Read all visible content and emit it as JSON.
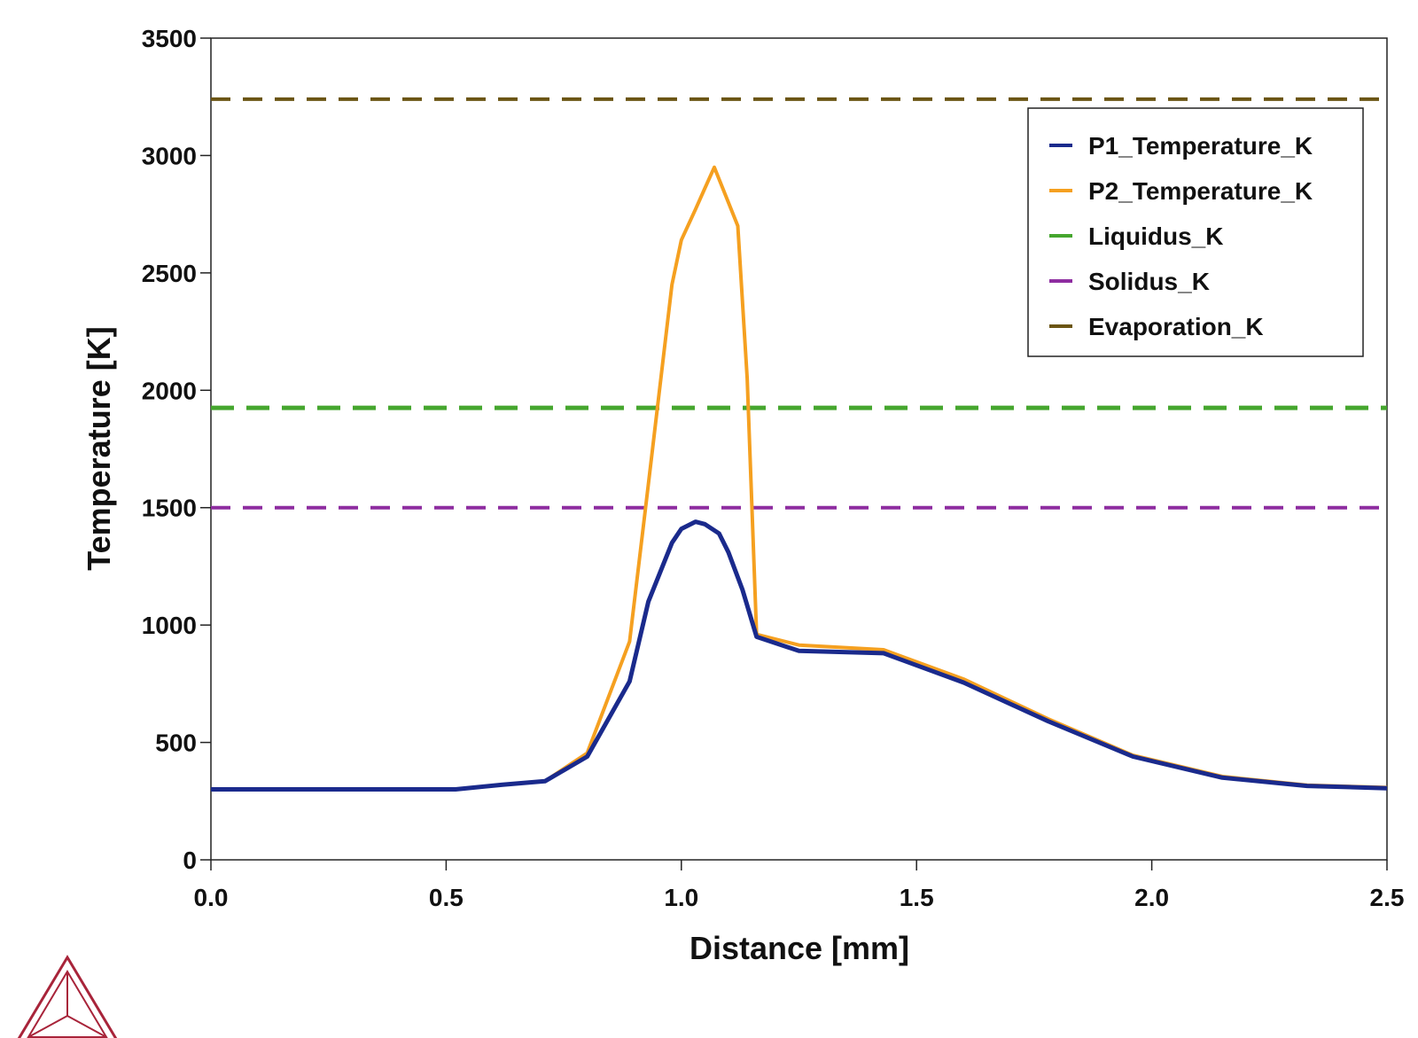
{
  "chart_data": {
    "type": "line",
    "title": "",
    "xlabel": "Distance [mm]",
    "ylabel": "Temperature [K]",
    "xlim": [
      0,
      2.5
    ],
    "ylim": [
      0,
      3500
    ],
    "x_ticks": [
      "0.0",
      "0.5",
      "1.0",
      "1.5",
      "2.0",
      "2.5"
    ],
    "y_ticks": [
      "0",
      "500",
      "1000",
      "1500",
      "2000",
      "2500",
      "3000",
      "3500"
    ],
    "grid": false,
    "legend_position": "top-right",
    "series": [
      {
        "name": "P1_Temperature_K",
        "color": "#1a2a8c",
        "style": "solid",
        "x": [
          0.0,
          0.25,
          0.52,
          0.62,
          0.71,
          0.8,
          0.89,
          0.93,
          0.98,
          1.0,
          1.03,
          1.05,
          1.08,
          1.1,
          1.13,
          1.16,
          1.25,
          1.43,
          1.6,
          1.78,
          1.96,
          2.15,
          2.33,
          2.5
        ],
        "y": [
          300,
          300,
          300,
          320,
          335,
          440,
          760,
          1100,
          1350,
          1410,
          1440,
          1430,
          1390,
          1310,
          1150,
          950,
          890,
          880,
          755,
          590,
          440,
          350,
          315,
          305
        ]
      },
      {
        "name": "P2_Temperature_K",
        "color": "#f5a020",
        "style": "solid",
        "x": [
          0.0,
          0.25,
          0.52,
          0.62,
          0.71,
          0.8,
          0.89,
          0.93,
          0.98,
          1.0,
          1.03,
          1.05,
          1.07,
          1.1,
          1.12,
          1.14,
          1.16,
          1.25,
          1.43,
          1.6,
          1.78,
          1.96,
          2.15,
          2.33,
          2.5
        ],
        "y": [
          300,
          300,
          300,
          320,
          335,
          455,
          930,
          1600,
          2450,
          2640,
          2770,
          2860,
          2950,
          2800,
          2700,
          2050,
          960,
          915,
          895,
          770,
          600,
          445,
          355,
          318,
          308
        ]
      },
      {
        "name": "Liquidus_K",
        "color": "#45a62e",
        "style": "dashed",
        "x": [
          0.0,
          2.5
        ],
        "y": [
          1925,
          1925
        ]
      },
      {
        "name": "Solidus_K",
        "color": "#8e2da0",
        "style": "dashed",
        "x": [
          0.0,
          2.5
        ],
        "y": [
          1500,
          1500
        ]
      },
      {
        "name": "Evaporation_K",
        "color": "#6b5514",
        "style": "dashed",
        "x": [
          0.0,
          2.5
        ],
        "y": [
          3240,
          3240
        ]
      }
    ]
  },
  "logo": {
    "name": "thermo-calc-logo",
    "color": "#a8243a"
  }
}
